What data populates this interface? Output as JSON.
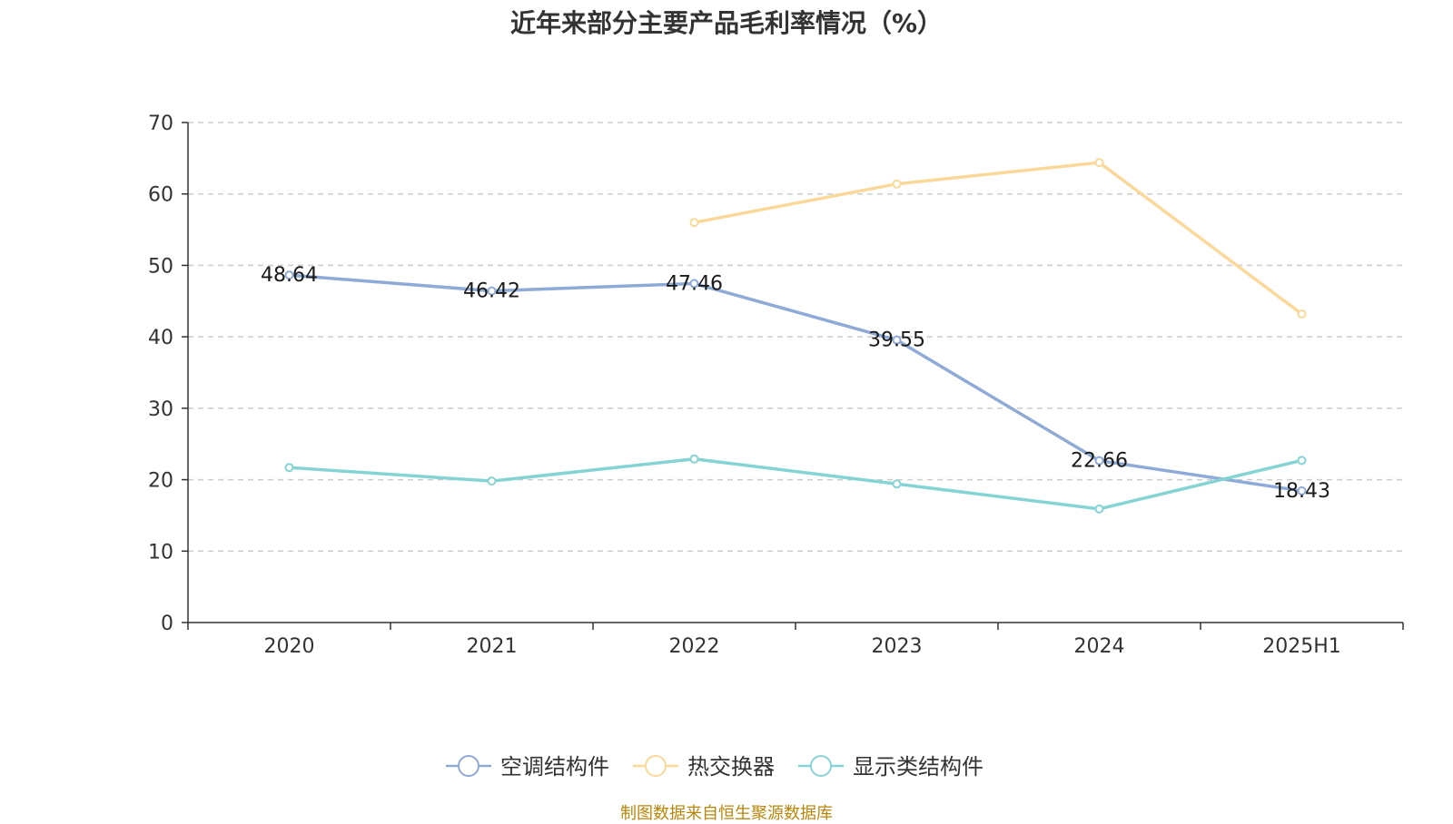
{
  "chart_data": {
    "type": "line",
    "title": "近年来部分主要产品毛利率情况（%）",
    "categories": [
      "2020",
      "2021",
      "2022",
      "2023",
      "2024",
      "2025H1"
    ],
    "ylim": [
      0,
      70
    ],
    "yticks": [
      0,
      10,
      20,
      30,
      40,
      50,
      60,
      70
    ],
    "grid": true,
    "legend_position": "bottom",
    "series": [
      {
        "name": "空调结构件",
        "color": "#8eaad6",
        "values": [
          48.64,
          46.42,
          47.46,
          39.55,
          22.66,
          18.43
        ],
        "labels": [
          "48.64",
          "46.42",
          "47.46",
          "39.55",
          "22.66",
          "18.43"
        ]
      },
      {
        "name": "热交换器",
        "color": "#f9d89a",
        "values": [
          null,
          null,
          56.0,
          61.4,
          64.4,
          43.2
        ],
        "labels": []
      },
      {
        "name": "显示类结构件",
        "color": "#86d3d4",
        "values": [
          21.7,
          19.8,
          22.9,
          19.4,
          15.9,
          22.7
        ],
        "labels": []
      }
    ]
  },
  "source": "制图数据来自恒生聚源数据库"
}
